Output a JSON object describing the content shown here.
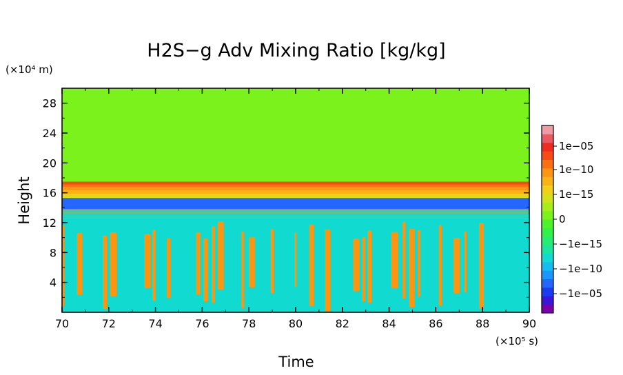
{
  "chart_data": {
    "type": "heatmap",
    "title": "H2S−g Adv Mixing Ratio [kg/kg]",
    "xlabel": "Time",
    "ylabel": "Height",
    "x_unit": "(×10⁵ s)",
    "y_unit": "(×10⁴ m)",
    "xlim": [
      70,
      90
    ],
    "ylim": [
      0,
      30
    ],
    "x_ticks": [
      70,
      72,
      74,
      76,
      78,
      80,
      82,
      84,
      86,
      88,
      90
    ],
    "x_tick_labels": [
      "70",
      "72",
      "74",
      "76",
      "78",
      "80",
      "82",
      "84",
      "86",
      "88",
      "90"
    ],
    "y_ticks": [
      4,
      8,
      12,
      16,
      20,
      24,
      28
    ],
    "y_tick_labels": [
      "4",
      "8",
      "12",
      "16",
      "20",
      "24",
      "28"
    ],
    "grid": false,
    "colorbar": {
      "position": "right",
      "tick_labels": [
        "1e−05",
        "1e−10",
        "1e−15",
        "0",
        "−1e−15",
        "−1e−10",
        "−1e−05"
      ],
      "colors": [
        "#7a00a8",
        "#3a16d8",
        "#1a3cf0",
        "#2466ff",
        "#1c96ff",
        "#14bcf2",
        "#11dbd0",
        "#1be6a0",
        "#25ec72",
        "#31f24a",
        "#4cf22a",
        "#7cf21c",
        "#a8ec1a",
        "#d2e21a",
        "#f0d018",
        "#f8b414",
        "#fa9612",
        "#f87010",
        "#f44c14",
        "#ee2c20",
        "#ea5a60",
        "#f29aa4"
      ]
    },
    "regions": [
      {
        "y_range": [
          17.5,
          30
        ],
        "pattern": "uniform",
        "value": "0"
      },
      {
        "y_range": [
          15.3,
          17.5
        ],
        "pattern": "gradient",
        "from": "1e−15",
        "to": "1e−05"
      },
      {
        "y_range": [
          13.8,
          15.3
        ],
        "pattern": "uniform",
        "value": "−1e−05"
      },
      {
        "y_range": [
          12.5,
          13.8
        ],
        "pattern": "horizontal bands",
        "values": [
          "1e−10",
          "−1e−10"
        ]
      },
      {
        "y_range": [
          0,
          12.5
        ],
        "pattern": "vertical streaks",
        "values": [
          "1e−10",
          "−1e−10"
        ]
      }
    ]
  }
}
